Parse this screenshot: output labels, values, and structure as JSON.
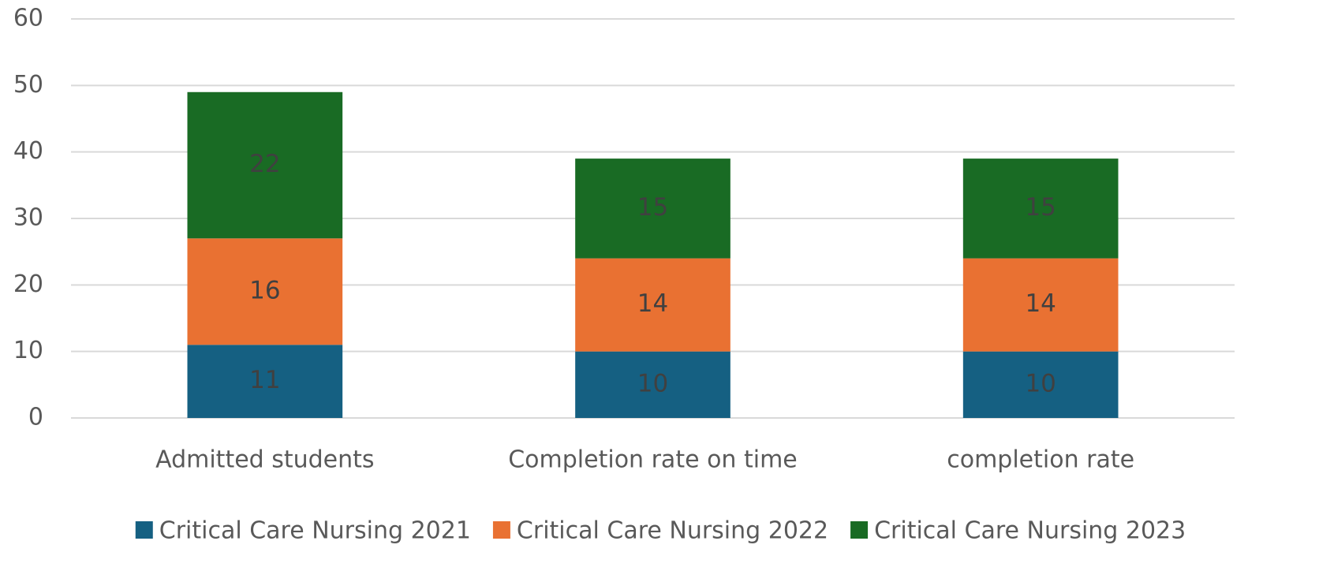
{
  "chart_data": {
    "type": "stacked_bar",
    "categories": [
      "Admitted students",
      "Completion rate on time",
      "completion rate"
    ],
    "series": [
      {
        "name": "Critical Care Nursing 2021",
        "color": "#156082",
        "values": [
          11,
          10,
          10
        ]
      },
      {
        "name": "Critical Care Nursing 2022",
        "color": "#e97132",
        "values": [
          16,
          14,
          14
        ]
      },
      {
        "name": "Critical Care Nursing 2023",
        "color": "#196b24",
        "values": [
          22,
          15,
          15
        ]
      }
    ],
    "ylim": [
      0,
      60
    ],
    "yticks": [
      0,
      10,
      20,
      30,
      40,
      50,
      60
    ],
    "grid": true,
    "legend": "bottom"
  }
}
